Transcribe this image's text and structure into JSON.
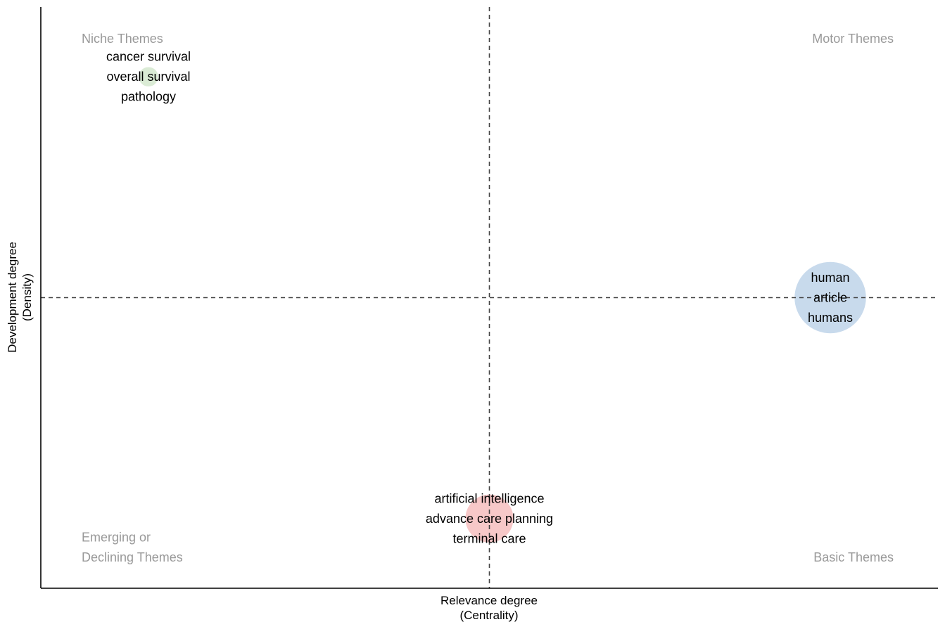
{
  "chart_data": {
    "type": "scatter",
    "title": "",
    "xlabel": "Relevance degree",
    "xlabel_sub": "(Centrality)",
    "ylabel": "Development degree",
    "ylabel_sub": "(Density)",
    "xlim": [
      0,
      1
    ],
    "ylim": [
      0,
      1
    ],
    "grid": false,
    "reference_lines": {
      "x": 0.5,
      "y": 0.5
    },
    "quadrant_labels": {
      "top_left": [
        "Niche Themes"
      ],
      "top_right": [
        "Motor Themes"
      ],
      "bottom_left": [
        "Emerging or",
        "Declining Themes"
      ],
      "bottom_right": [
        "Basic Themes"
      ]
    },
    "clusters": [
      {
        "x": 0.12,
        "y": 0.88,
        "size": 0.16,
        "color": "#d9ead3",
        "labels": [
          "cancer survival",
          "overall survival",
          "pathology"
        ]
      },
      {
        "x": 0.88,
        "y": 0.5,
        "size": 1.0,
        "color": "#c6d9ec",
        "labels": [
          "human",
          "article",
          "humans"
        ]
      },
      {
        "x": 0.5,
        "y": 0.12,
        "size": 0.62,
        "color": "#f7c6c6",
        "labels": [
          "artificial intelligence",
          "advance care planning",
          "terminal care"
        ]
      }
    ]
  }
}
